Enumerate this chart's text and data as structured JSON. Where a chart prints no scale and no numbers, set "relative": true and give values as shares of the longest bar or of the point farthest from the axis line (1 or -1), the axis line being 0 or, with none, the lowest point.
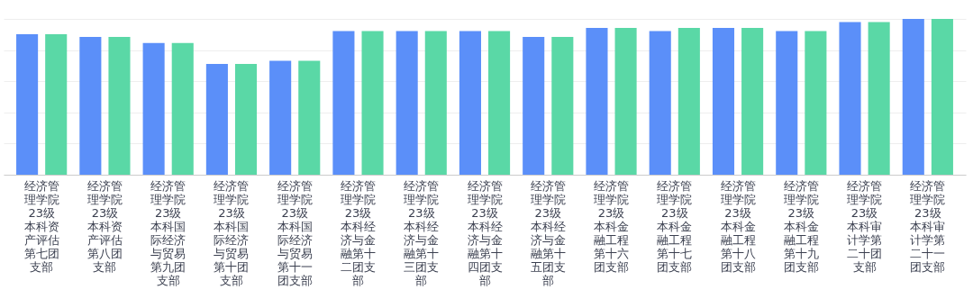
{
  "chart_data": {
    "type": "bar",
    "relative": true,
    "grid": "y",
    "categories": [
      "经济管理学院23级本科资产评估第七团支部",
      "经济管理学院23级本科资产评估第八团支部",
      "经济管理学院23级本科国际经济与贸易第九团支部",
      "经济管理学院23级本科国际经济与贸易第十团支部",
      "经济管理学院23级本科国际经济与贸易第十一团支部",
      "经济管理学院23级本科经济与金融第十二团支部",
      "经济管理学院23级本科经济与金融第十三团支部",
      "经济管理学院23级本科经济与金融第十四团支部",
      "经济管理学院23级本科经济与金融第十五团支部",
      "经济管理学院23级本科金融工程第十六团支部",
      "经济管理学院23级本科金融工程第十七团支部",
      "经济管理学院23级本科金融工程第十八团支部",
      "经济管理学院23级本科金融工程第十九团支部",
      "经济管理学院23级本科审计学第二十团支部",
      "经济管理学院23级本科审计学第二十一团支部"
    ],
    "series": [
      {
        "color": "#5b8ff9",
        "values": [
          0.902,
          0.884,
          0.846,
          0.711,
          0.731,
          0.922,
          0.922,
          0.922,
          0.884,
          0.942,
          0.922,
          0.942,
          0.922,
          0.98,
          1.0
        ]
      },
      {
        "color": "#5ad8a6",
        "values": [
          0.902,
          0.884,
          0.846,
          0.711,
          0.731,
          0.922,
          0.922,
          0.922,
          0.884,
          0.942,
          0.942,
          0.942,
          0.922,
          0.98,
          1.0
        ]
      }
    ]
  }
}
